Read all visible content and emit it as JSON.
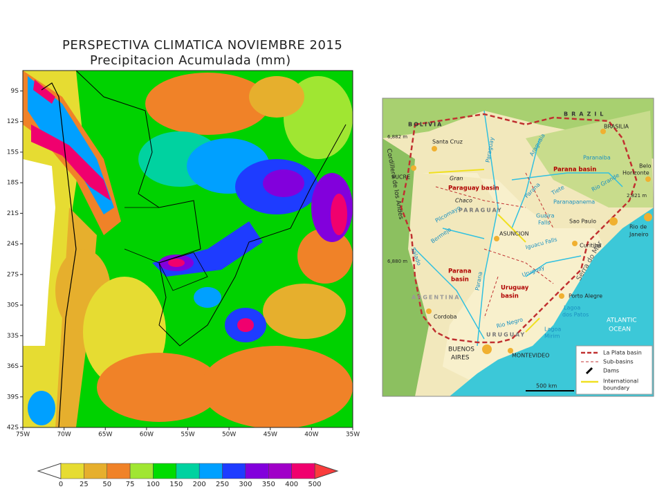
{
  "title": {
    "line1": "PERSPECTIVA CLIMATICA NOVIEMBRE 2015",
    "line2": "Precipitacion Acumulada (mm)"
  },
  "precip_map": {
    "xlim": [
      -75,
      -35
    ],
    "ylim": [
      -42,
      -7
    ],
    "xticks": [
      {
        "value": -75,
        "label": "75W"
      },
      {
        "value": -70,
        "label": "70W"
      },
      {
        "value": -65,
        "label": "65W"
      },
      {
        "value": -60,
        "label": "60W"
      },
      {
        "value": -55,
        "label": "55W"
      },
      {
        "value": -50,
        "label": "50W"
      },
      {
        "value": -45,
        "label": "45W"
      },
      {
        "value": -40,
        "label": "40W"
      },
      {
        "value": -35,
        "label": "35W"
      }
    ],
    "yticks": [
      {
        "value": -9,
        "label": "9S"
      },
      {
        "value": -12,
        "label": "12S"
      },
      {
        "value": -15,
        "label": "15S"
      },
      {
        "value": -18,
        "label": "18S"
      },
      {
        "value": -21,
        "label": "21S"
      },
      {
        "value": -24,
        "label": "24S"
      },
      {
        "value": -27,
        "label": "27S"
      },
      {
        "value": -30,
        "label": "30S"
      },
      {
        "value": -33,
        "label": "33S"
      },
      {
        "value": -36,
        "label": "36S"
      },
      {
        "value": -39,
        "label": "39S"
      },
      {
        "value": -42,
        "label": "42S"
      }
    ]
  },
  "colorbar": {
    "levels": [
      0,
      25,
      50,
      75,
      100,
      150,
      200,
      250,
      300,
      350,
      400,
      500
    ],
    "colors": [
      "#e6dc32",
      "#e6af2d",
      "#f08228",
      "#a0e632",
      "#00dc00",
      "#00d2a0",
      "#00a0ff",
      "#1e3cff",
      "#8200dc",
      "#a000c8",
      "#f0006e"
    ],
    "under_color": "#ffffff",
    "over_color": "#fa3c3c"
  },
  "basin_map": {
    "labels": [
      "BOLIVIA",
      "BRAZIL",
      "BRASILIA",
      "Santa Cruz",
      "6,882 m",
      "SUCRE",
      "Cordillera de los Andes",
      "Paraguay basin",
      "Gran",
      "Chaco",
      "PARAGUAY",
      "Parana basin",
      "Belo",
      "Horizonte",
      "Paraguay",
      "Araguaia",
      "Paranaiba",
      "Rio Grande",
      "Tiete",
      "Parana",
      "Paranapanema",
      "Guaira",
      "Falls",
      "ASUNCION",
      "Iguacu Falls",
      "Pilcomayo",
      "Bermejo",
      "Salado",
      "6,880 m",
      "Parana",
      "basin",
      "Sao Paulo",
      "Rio de",
      "Janeiro",
      "2,821 m",
      "Serra do Mar",
      "Curitiba",
      "Uruguay",
      "ARGENTINA",
      "Uruguay",
      "basin",
      "Porto Alegre",
      "Lagoa",
      "dos Patos",
      "Cordoba",
      "Rio Negro",
      "Lagoa",
      "Mirim",
      "ATLANTIC",
      "OCEAN",
      "BUENOS",
      "AIRES",
      "MONTEVIDEO",
      "URUGUAY",
      "Parana"
    ],
    "legend": [
      "La Plata basin",
      "Sub-basins",
      "Dams",
      "International",
      "boundary"
    ],
    "scale": "500 km"
  }
}
